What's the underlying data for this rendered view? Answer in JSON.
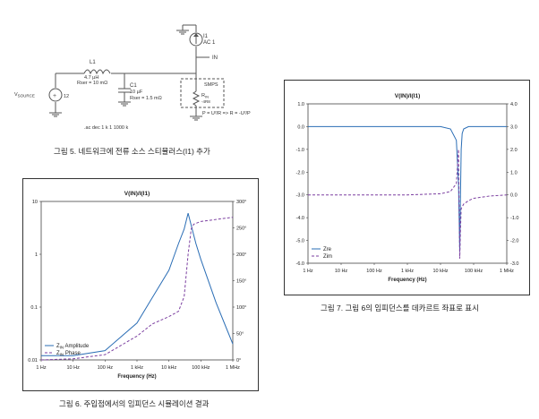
{
  "figure5": {
    "caption": "그림 5. 네트워크에 전류 소스 스티뮬러스(I1) 추가",
    "labels": {
      "i1": "I1",
      "ac1": "AC 1",
      "in_net": "IN",
      "l1": "L1",
      "l1_val": "4.7 µH",
      "l1_rser": "Rser = 10 mΩ",
      "c1": "C1",
      "c1_val": "10 µF",
      "c1_rser": "Rser = 1.5 mΩ",
      "smps": "SMPS",
      "rin_main": "R",
      "rin_sub": "IN",
      "rin_val": "-4R8",
      "vsource_main": "V",
      "vsource_sub": "SOURCE",
      "v_value": "12",
      "power_eq": "P = U²/R => R = -U²/P",
      "ac_directive": ".ac dec 1 k 1 1000 k"
    }
  },
  "figure6": {
    "caption": "그림 6. 주입점에서의 임피던스 시뮬레이션 결과",
    "chart_data": {
      "type": "line",
      "title": "V(IN)/I(I1)",
      "xlabel": "Frequency (Hz)",
      "x_scale": "log",
      "x_ticks": [
        "1 Hz",
        "10 Hz",
        "100 Hz",
        "1 kHz",
        "10 kHz",
        "100 kHz",
        "1 MHz"
      ],
      "y_left_scale": "log",
      "y_left_ticks": [
        "10",
        "1",
        "0.1",
        "0.01"
      ],
      "y_right_ticks": [
        "300°",
        "250°",
        "200°",
        "150°",
        "100°",
        "50°",
        "0°"
      ],
      "ylim_left": [
        0.01,
        10
      ],
      "ylim_right": [
        0,
        300
      ],
      "legend_position": "bottom-left",
      "series": [
        {
          "name": "Z",
          "name_sub": "IN",
          "name_suffix": " Amplitude",
          "color": "#2a6db5",
          "dash": "solid",
          "axis": "left",
          "x": [
            1,
            10,
            100,
            1000,
            3000,
            10000,
            20000,
            30000,
            40000,
            50000,
            70000,
            100000,
            300000,
            1000000
          ],
          "y": [
            0.012,
            0.012,
            0.015,
            0.05,
            0.15,
            0.5,
            1.6,
            3.0,
            6.0,
            3.5,
            1.6,
            0.8,
            0.12,
            0.02
          ]
        },
        {
          "name": "Z",
          "name_sub": "IN",
          "name_suffix": " Phase",
          "color": "#7b3fa0",
          "dash": "dashed",
          "axis": "right",
          "x": [
            1,
            10,
            100,
            1000,
            3000,
            10000,
            20000,
            30000,
            40000,
            50000,
            60000,
            100000,
            300000,
            1000000
          ],
          "y": [
            0,
            2,
            10,
            45,
            68,
            82,
            92,
            120,
            200,
            248,
            257,
            262,
            266,
            270
          ]
        }
      ]
    }
  },
  "figure7": {
    "caption": "그림 7. 그림 6의 임피던스를 데카르트 좌표로 표시",
    "chart_data": {
      "type": "line",
      "title": "V(IN)/I(I1)",
      "xlabel": "Frequency (Hz)",
      "x_scale": "log",
      "x_ticks": [
        "1 Hz",
        "10 Hz",
        "100 Hz",
        "1 kHz",
        "10 kHz",
        "100 kHz",
        "1 MHz"
      ],
      "y_left_ticks": [
        "1.0",
        "0.0",
        "-1.0",
        "-2.0",
        "-3.0",
        "-4.0",
        "-5.0",
        "-6.0"
      ],
      "y_right_ticks": [
        "4.0",
        "3.0",
        "2.0",
        "1.0",
        "0.0",
        "-1.0",
        "-2.0",
        "-3.0"
      ],
      "ylim_left": [
        -6,
        1
      ],
      "ylim_right": [
        -3,
        4
      ],
      "legend_position": "bottom-left",
      "series": [
        {
          "name": "Zre",
          "color": "#2a6db5",
          "dash": "solid",
          "axis": "left",
          "x": [
            1,
            1000,
            10000,
            20000,
            30000,
            35000,
            38000,
            40000,
            42000,
            45000,
            50000,
            70000,
            100000,
            1000000
          ],
          "y": [
            0.0,
            0.0,
            0.0,
            -0.1,
            -0.6,
            -2.5,
            -5.5,
            -3.0,
            -1.0,
            -0.3,
            -0.1,
            0.0,
            0.0,
            0.0
          ]
        },
        {
          "name": "Zim",
          "color": "#7b3fa0",
          "dash": "dashed",
          "axis": "left",
          "x": [
            1,
            1000,
            10000,
            20000,
            30000,
            35000,
            38000,
            40000,
            42000,
            50000,
            70000,
            100000,
            300000,
            1000000
          ],
          "y": [
            -3.0,
            -3.0,
            -2.95,
            -2.85,
            -2.5,
            -1.0,
            -5.8,
            -4.5,
            -3.6,
            -3.4,
            -3.25,
            -3.15,
            -3.05,
            -3.0
          ]
        }
      ]
    }
  }
}
